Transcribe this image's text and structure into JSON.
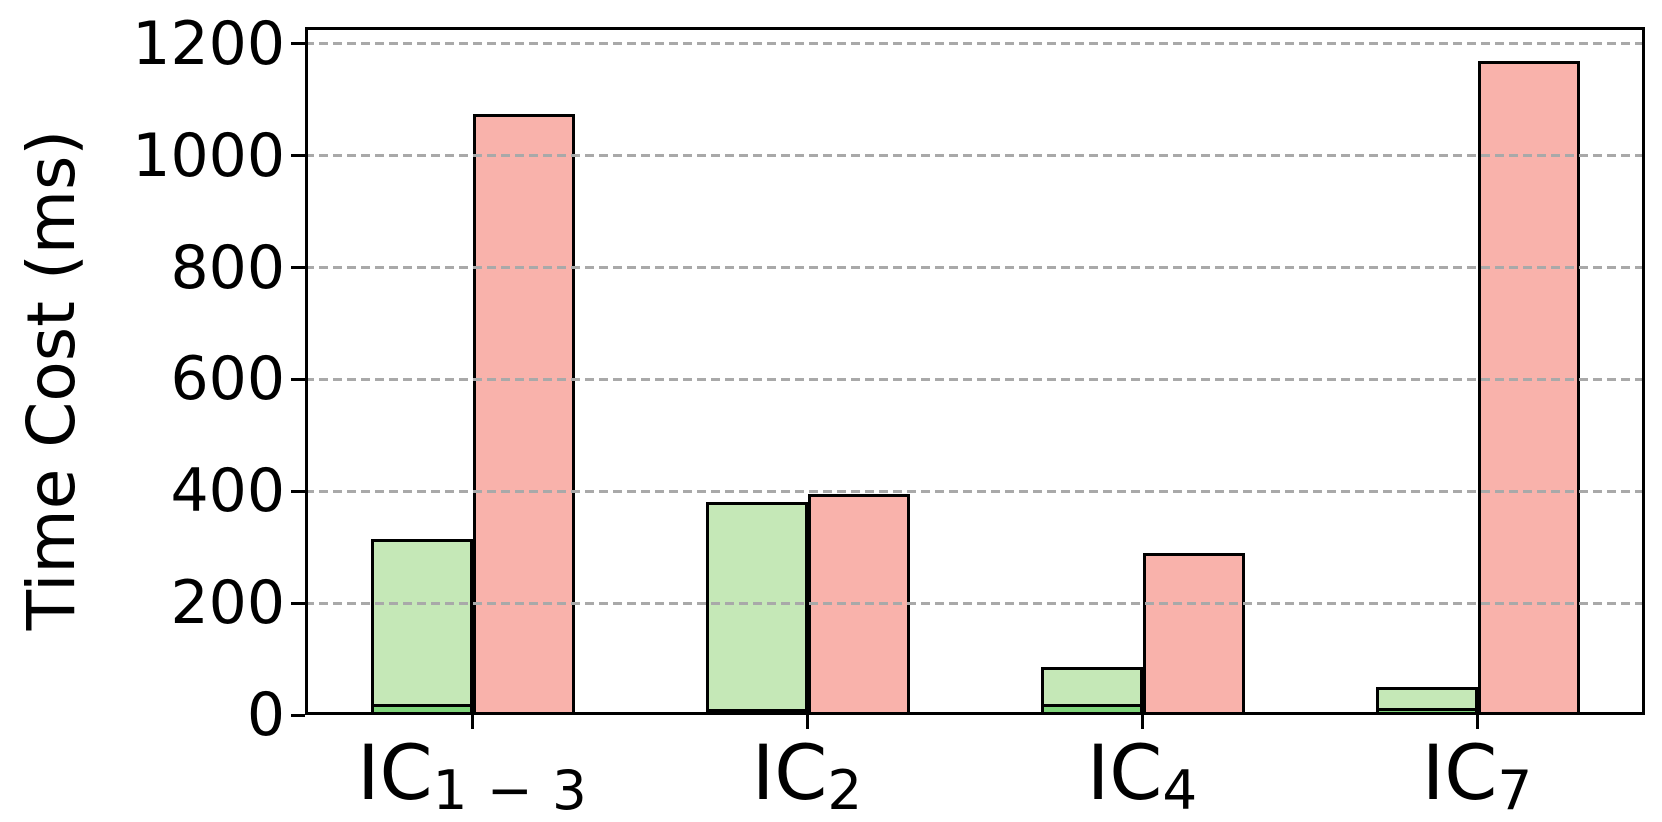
{
  "chart_data": {
    "type": "bar",
    "title": "",
    "xlabel": "",
    "ylabel": "Time Cost (ms)",
    "ylim": [
      0,
      1230
    ],
    "yticks": [
      0,
      200,
      400,
      600,
      800,
      1000,
      1200
    ],
    "grid": {
      "axis": "y",
      "style": "dashed",
      "color": "#a9a9a9",
      "drawn_above_bars": true
    },
    "legend": "none",
    "categories": [
      {
        "base": "IC",
        "sub": "1 − 3"
      },
      {
        "base": "IC",
        "sub": "2"
      },
      {
        "base": "IC",
        "sub": "4"
      },
      {
        "base": "IC",
        "sub": "7"
      }
    ],
    "series": [
      {
        "name": "green-bar-bottom-segment",
        "color": "#80d47c",
        "values": [
          20,
          8,
          20,
          13
        ]
      },
      {
        "name": "green-bar-top-segment",
        "color": "#c5e8b7",
        "values": [
          295,
          372,
          65,
          37
        ]
      },
      {
        "name": "red-bar",
        "color": "#f9b2ab",
        "values": [
          1075,
          395,
          290,
          1170
        ]
      }
    ],
    "green_bar_totals": [
      315,
      380,
      85,
      50
    ],
    "bar_edge_color": "#000000",
    "colors": {
      "light_green": "#c5e8b7",
      "dark_green": "#80d47c",
      "salmon": "#f9b2ab",
      "grid_gray": "#a9a9a9",
      "axis_black": "#000000",
      "background": "#ffffff"
    }
  }
}
